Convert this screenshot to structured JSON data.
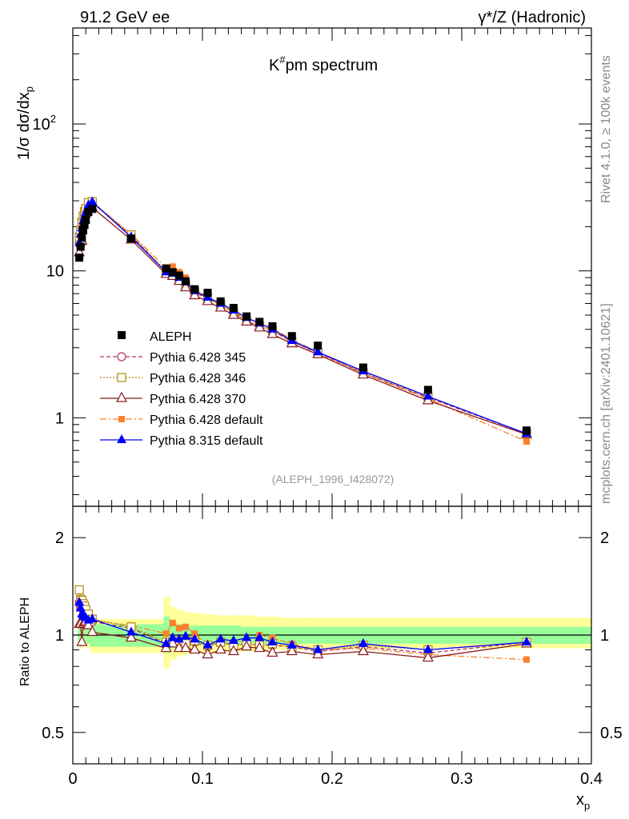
{
  "header": {
    "left": "91.2 GeV ee",
    "right": "γ*/Z (Hadronic)"
  },
  "side_texts": {
    "rivet": "Rivet 4.1.0, ≥ 100k events",
    "mcplots": "mcplots.cern.ch [arXiv:2401.10621]"
  },
  "chart_data": [
    {
      "type": "line",
      "title": "K#pm spectrum",
      "title_main": "K",
      "title_sup": "#",
      "title_rest": "pm spectrum",
      "ylabel": "1/σ dσ/dx_p",
      "ylabel_a": "1/σ  dσ/dx",
      "ylabel_sub": "p",
      "xlabel": "x_p",
      "xlabel_main": "x",
      "xlabel_sub": "p",
      "yscale": "log",
      "xlim": [
        0,
        0.4
      ],
      "ylim": [
        0.25,
        450
      ],
      "y_tick_labels": [
        {
          "value": 1,
          "label": "1"
        },
        {
          "value": 10,
          "label": "10"
        },
        {
          "value": 100,
          "label": "10",
          "sup": "2"
        }
      ],
      "annotation": "(ALEPH_1996_I428072)",
      "legend_position": "middle-left",
      "x": [
        0.005,
        0.006,
        0.007,
        0.008,
        0.009,
        0.01,
        0.012,
        0.015,
        0.045,
        0.072,
        0.077,
        0.082,
        0.087,
        0.094,
        0.104,
        0.114,
        0.124,
        0.134,
        0.144,
        0.154,
        0.169,
        0.189,
        0.224,
        0.274,
        0.35
      ],
      "series": [
        {
          "name": "ALEPH",
          "color": "#000000",
          "marker": "square",
          "dash": "none",
          "values": [
            12.3,
            14.6,
            16.8,
            18.9,
            20.6,
            22.2,
            25.2,
            26.4,
            16.6,
            10.4,
            9.8,
            9.3,
            8.5,
            7.5,
            7.1,
            6.2,
            5.6,
            4.9,
            4.5,
            4.2,
            3.6,
            3.1,
            2.2,
            1.55,
            0.82
          ]
        },
        {
          "name": "Pythia 6.428 345",
          "color": "#b03060",
          "marker": "circle-open",
          "dash": "5,3",
          "values": [
            15.5,
            17.8,
            20.5,
            22.5,
            24.3,
            25.6,
            28.6,
            29.1,
            17.5,
            9.8,
            9.3,
            8.9,
            8.0,
            7.1,
            6.5,
            5.9,
            5.2,
            4.6,
            4.2,
            3.9,
            3.3,
            2.76,
            2.02,
            1.37,
            0.78
          ]
        },
        {
          "name": "Pythia 6.428 346",
          "color": "#b8860b",
          "marker": "square-open",
          "dash": "2,2",
          "values": [
            17.0,
            18.8,
            21.5,
            23.6,
            25.3,
            26.6,
            29.2,
            29.6,
            17.6,
            9.9,
            9.3,
            8.9,
            8.0,
            7.2,
            6.6,
            5.9,
            5.2,
            4.6,
            4.2,
            3.95,
            3.3,
            2.78,
            2.04,
            1.39,
            0.78
          ]
        },
        {
          "name": "Pythia 6.428 370",
          "color": "#8b1a1a",
          "marker": "triangle-open",
          "dash": "none",
          "values": [
            13.3,
            15.8,
            16.0,
            20.5,
            22.4,
            24.5,
            27.0,
            27.0,
            16.3,
            9.5,
            9.2,
            8.5,
            7.7,
            6.8,
            6.2,
            5.6,
            5.0,
            4.5,
            4.1,
            3.7,
            3.2,
            2.7,
            1.96,
            1.31,
            0.77
          ]
        },
        {
          "name": "Pythia 6.428 default",
          "color": "#ff7f2a",
          "marker": "square-filled",
          "dash": "8,3,2,3",
          "values": [
            15.0,
            18.0,
            21.0,
            23.3,
            24.9,
            26.3,
            28.8,
            29.4,
            17.8,
            10.5,
            10.7,
            9.8,
            9.0,
            7.6,
            6.6,
            5.8,
            5.3,
            4.7,
            4.5,
            4.1,
            3.4,
            2.8,
            2.0,
            1.35,
            0.69
          ]
        },
        {
          "name": "Pythia 8.315 default",
          "color": "#0000ff",
          "marker": "triangle-filled",
          "dash": "none",
          "values": [
            15.5,
            17.7,
            19.5,
            21.8,
            23.4,
            25.0,
            28.0,
            29.5,
            17.0,
            9.8,
            9.6,
            9.0,
            8.4,
            7.3,
            6.6,
            6.0,
            5.4,
            4.8,
            4.4,
            4.0,
            3.35,
            2.8,
            2.08,
            1.4,
            0.78
          ]
        }
      ]
    },
    {
      "type": "line",
      "ylabel": "Ratio to ALEPH",
      "xlabel": "x_p",
      "yscale": "log",
      "xlim": [
        0,
        0.4
      ],
      "ylim": [
        0.4,
        2.5
      ],
      "y_ticks": [
        0.5,
        1,
        2
      ],
      "y_tick_labels": [
        "0.5",
        "1",
        "2"
      ],
      "x_ticks": [
        0,
        0.1,
        0.2,
        0.3,
        0.4
      ],
      "x_tick_labels": [
        "0",
        "0.1",
        "0.2",
        "0.3",
        "0.4"
      ],
      "band_edges": [
        0.004,
        0.0055,
        0.0065,
        0.0075,
        0.0085,
        0.0095,
        0.011,
        0.0135,
        0.0165,
        0.07,
        0.075,
        0.08,
        0.085,
        0.09,
        0.1,
        0.11,
        0.12,
        0.13,
        0.14,
        0.15,
        0.16,
        0.18,
        0.2,
        0.25,
        0.3,
        0.4
      ],
      "band_stat_lo": [
        0.93,
        0.92,
        0.93,
        0.94,
        0.95,
        0.95,
        0.94,
        0.92,
        0.92,
        0.88,
        0.91,
        0.92,
        0.93,
        0.93,
        0.93,
        0.93,
        0.93,
        0.94,
        0.94,
        0.94,
        0.94,
        0.94,
        0.94,
        0.94,
        0.94
      ],
      "band_stat_hi": [
        1.07,
        1.08,
        1.07,
        1.06,
        1.05,
        1.05,
        1.06,
        1.08,
        1.08,
        1.14,
        1.09,
        1.08,
        1.07,
        1.07,
        1.07,
        1.07,
        1.07,
        1.06,
        1.06,
        1.06,
        1.06,
        1.06,
        1.06,
        1.06,
        1.06
      ],
      "band_tot_lo": [
        0.92,
        0.9,
        0.91,
        0.92,
        0.93,
        0.93,
        0.91,
        0.88,
        0.88,
        0.79,
        0.84,
        0.86,
        0.87,
        0.88,
        0.88,
        0.89,
        0.89,
        0.89,
        0.89,
        0.9,
        0.9,
        0.91,
        0.91,
        0.91,
        0.91
      ],
      "band_tot_hi": [
        1.08,
        1.1,
        1.09,
        1.08,
        1.07,
        1.07,
        1.09,
        1.12,
        1.12,
        1.31,
        1.22,
        1.2,
        1.18,
        1.17,
        1.16,
        1.15,
        1.15,
        1.15,
        1.14,
        1.14,
        1.13,
        1.13,
        1.13,
        1.13,
        1.13
      ],
      "series": [
        {
          "name": "Pythia 6.428 345",
          "values": [
            1.26,
            1.22,
            1.22,
            1.19,
            1.18,
            1.15,
            1.13,
            1.1,
            1.05,
            0.94,
            0.95,
            0.96,
            0.94,
            0.95,
            0.92,
            0.95,
            0.93,
            0.94,
            0.93,
            0.93,
            0.92,
            0.89,
            0.92,
            0.88,
            0.95
          ]
        },
        {
          "name": "Pythia 6.428 346",
          "values": [
            1.38,
            1.29,
            1.28,
            1.25,
            1.23,
            1.2,
            1.16,
            1.12,
            1.06,
            0.95,
            0.95,
            0.96,
            0.94,
            0.96,
            0.93,
            0.95,
            0.93,
            0.94,
            0.93,
            0.94,
            0.92,
            0.9,
            0.93,
            0.9,
            0.95
          ]
        },
        {
          "name": "Pythia 6.428 370",
          "values": [
            1.08,
            1.08,
            0.95,
            1.08,
            1.09,
            1.1,
            1.07,
            1.02,
            0.98,
            0.91,
            0.94,
            0.91,
            0.91,
            0.9,
            0.87,
            0.9,
            0.89,
            0.92,
            0.91,
            0.88,
            0.89,
            0.87,
            0.89,
            0.85,
            0.94
          ]
        },
        {
          "name": "Pythia 6.428 default",
          "values": [
            1.22,
            1.23,
            1.25,
            1.23,
            1.21,
            1.18,
            1.14,
            1.11,
            1.07,
            1.01,
            1.09,
            1.05,
            1.06,
            1.01,
            0.93,
            0.94,
            0.95,
            0.96,
            1.0,
            0.98,
            0.94,
            0.9,
            0.91,
            0.87,
            0.84
          ]
        },
        {
          "name": "Pythia 8.315 default",
          "values": [
            1.26,
            1.21,
            1.16,
            1.15,
            1.14,
            1.13,
            1.11,
            1.12,
            1.02,
            0.94,
            0.98,
            0.97,
            0.99,
            0.97,
            0.93,
            0.97,
            0.96,
            0.98,
            0.98,
            0.95,
            0.93,
            0.9,
            0.94,
            0.9,
            0.95
          ]
        }
      ]
    }
  ]
}
